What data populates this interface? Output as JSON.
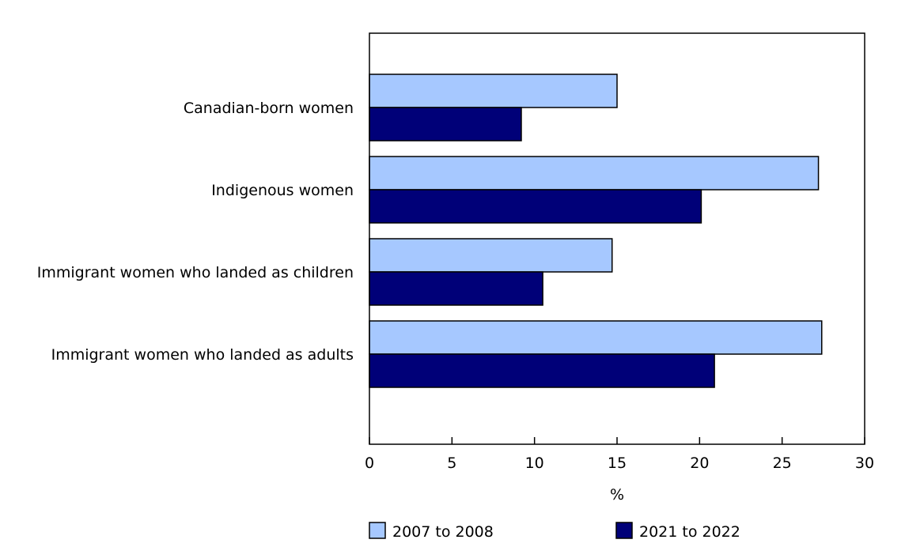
{
  "chart_data": {
    "type": "bar",
    "orientation": "horizontal",
    "title": "",
    "xlabel": "%",
    "ylabel": "",
    "xlim": [
      0,
      30
    ],
    "x_ticks": [
      0,
      5,
      10,
      15,
      20,
      25,
      30
    ],
    "grid": false,
    "legend_position": "bottom",
    "categories": [
      "Canadian-born women",
      "Indigenous women",
      "Immigrant women who landed as children",
      "Immigrant women who landed as adults"
    ],
    "series": [
      {
        "name": "2007 to 2008",
        "color": "#a6c8ff",
        "values": [
          15.0,
          27.2,
          14.7,
          27.4
        ]
      },
      {
        "name": "2021 to 2022",
        "color": "#000078",
        "values": [
          9.2,
          20.1,
          10.5,
          20.9
        ]
      }
    ]
  }
}
